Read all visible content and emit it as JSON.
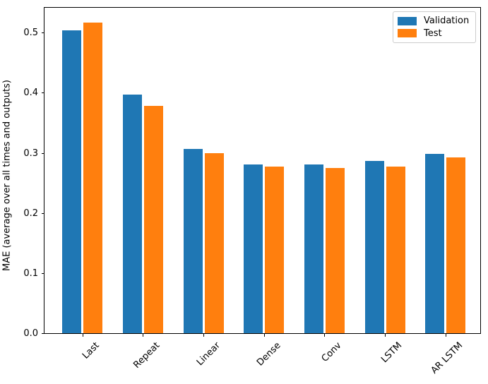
{
  "chart_data": {
    "type": "bar",
    "title": "",
    "xlabel": "",
    "ylabel": "MAE (average over all times and outputs)",
    "categories": [
      "Last",
      "Repeat",
      "Linear",
      "Dense",
      "Conv",
      "LSTM",
      "AR LSTM"
    ],
    "series": [
      {
        "name": "Validation",
        "color": "#1f77b4",
        "values": [
          0.504,
          0.397,
          0.307,
          0.281,
          0.281,
          0.287,
          0.299
        ]
      },
      {
        "name": "Test",
        "color": "#ff7f0e",
        "values": [
          0.517,
          0.379,
          0.3,
          0.278,
          0.276,
          0.278,
          0.293
        ]
      }
    ],
    "ylim": [
      0,
      0.543
    ],
    "yticks": [
      0.0,
      0.1,
      0.2,
      0.3,
      0.4,
      0.5
    ],
    "ytick_labels": [
      "0.0",
      "0.1",
      "0.2",
      "0.3",
      "0.4",
      "0.5"
    ],
    "xtick_rotation": 45,
    "grid": false,
    "legend_position": "upper right",
    "axis_color": "#000000",
    "background_color": "#ffffff"
  }
}
